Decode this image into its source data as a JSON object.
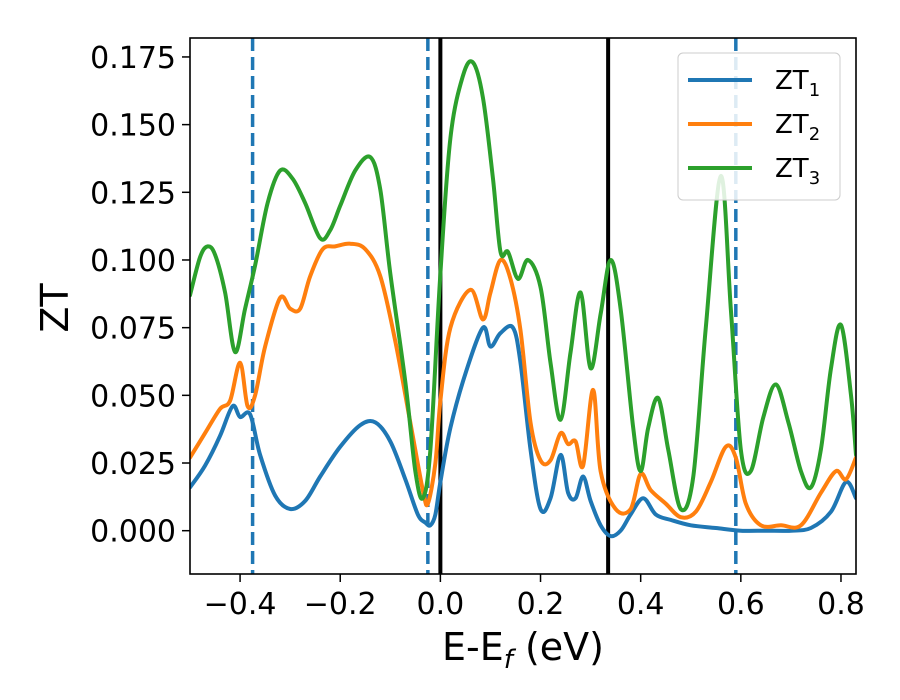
{
  "chart_data": {
    "type": "line",
    "title": "",
    "xlabel": "E-E",
    "xlabel_sub": "f",
    "xlabel_unit": " (eV)",
    "ylabel": "ZT",
    "xlim": [
      -0.5,
      0.83
    ],
    "ylim": [
      -0.016,
      0.182
    ],
    "x_ticks": [
      -0.4,
      -0.2,
      0.0,
      0.2,
      0.4,
      0.6,
      0.8
    ],
    "x_tick_labels": [
      "−0.4",
      "−0.2",
      "0.0",
      "0.2",
      "0.4",
      "0.6",
      "0.8"
    ],
    "y_ticks": [
      0.0,
      0.025,
      0.05,
      0.075,
      0.1,
      0.125,
      0.15,
      0.175
    ],
    "y_tick_labels": [
      "0.000",
      "0.025",
      "0.050",
      "0.075",
      "0.100",
      "0.125",
      "0.150",
      "0.175"
    ],
    "grid": false,
    "legend_position": "top-right",
    "vlines": [
      {
        "x": -0.375,
        "style": "dashed",
        "color": "#1f77b4"
      },
      {
        "x": -0.025,
        "style": "dashed",
        "color": "#1f77b4"
      },
      {
        "x": 0.0,
        "style": "solid",
        "color": "#000000"
      },
      {
        "x": 0.335,
        "style": "solid",
        "color": "#000000"
      },
      {
        "x": 0.59,
        "style": "dashed",
        "color": "#1f77b4"
      }
    ],
    "series": [
      {
        "name": "ZT",
        "name_sub": "1",
        "color": "#1f77b4",
        "points": [
          [
            -0.5,
            0.016
          ],
          [
            -0.47,
            0.024
          ],
          [
            -0.44,
            0.035
          ],
          [
            -0.415,
            0.046
          ],
          [
            -0.4,
            0.042
          ],
          [
            -0.38,
            0.043
          ],
          [
            -0.36,
            0.028
          ],
          [
            -0.33,
            0.013
          ],
          [
            -0.3,
            0.008
          ],
          [
            -0.27,
            0.011
          ],
          [
            -0.24,
            0.02
          ],
          [
            -0.2,
            0.031
          ],
          [
            -0.16,
            0.039
          ],
          [
            -0.13,
            0.04
          ],
          [
            -0.1,
            0.033
          ],
          [
            -0.07,
            0.019
          ],
          [
            -0.045,
            0.006
          ],
          [
            -0.03,
            0.003
          ],
          [
            -0.02,
            0.002
          ],
          [
            -0.01,
            0.006
          ],
          [
            0.0,
            0.018
          ],
          [
            0.02,
            0.038
          ],
          [
            0.05,
            0.058
          ],
          [
            0.085,
            0.075
          ],
          [
            0.1,
            0.068
          ],
          [
            0.12,
            0.073
          ],
          [
            0.145,
            0.075
          ],
          [
            0.16,
            0.062
          ],
          [
            0.18,
            0.03
          ],
          [
            0.2,
            0.008
          ],
          [
            0.22,
            0.012
          ],
          [
            0.24,
            0.028
          ],
          [
            0.255,
            0.014
          ],
          [
            0.27,
            0.012
          ],
          [
            0.285,
            0.02
          ],
          [
            0.3,
            0.011
          ],
          [
            0.32,
            0.002
          ],
          [
            0.34,
            -0.002
          ],
          [
            0.36,
            0.0
          ],
          [
            0.38,
            0.006
          ],
          [
            0.405,
            0.012
          ],
          [
            0.43,
            0.006
          ],
          [
            0.46,
            0.004
          ],
          [
            0.5,
            0.002
          ],
          [
            0.55,
            0.001
          ],
          [
            0.6,
            0.0
          ],
          [
            0.65,
            0.0
          ],
          [
            0.7,
            0.0
          ],
          [
            0.74,
            0.001
          ],
          [
            0.78,
            0.007
          ],
          [
            0.81,
            0.018
          ],
          [
            0.83,
            0.012
          ]
        ]
      },
      {
        "name": "ZT",
        "name_sub": "2",
        "color": "#ff7f0e",
        "points": [
          [
            -0.5,
            0.027
          ],
          [
            -0.47,
            0.036
          ],
          [
            -0.44,
            0.045
          ],
          [
            -0.42,
            0.048
          ],
          [
            -0.4,
            0.062
          ],
          [
            -0.385,
            0.046
          ],
          [
            -0.37,
            0.05
          ],
          [
            -0.35,
            0.068
          ],
          [
            -0.32,
            0.086
          ],
          [
            -0.3,
            0.082
          ],
          [
            -0.28,
            0.082
          ],
          [
            -0.26,
            0.094
          ],
          [
            -0.235,
            0.104
          ],
          [
            -0.21,
            0.105
          ],
          [
            -0.18,
            0.106
          ],
          [
            -0.15,
            0.104
          ],
          [
            -0.12,
            0.094
          ],
          [
            -0.09,
            0.07
          ],
          [
            -0.06,
            0.04
          ],
          [
            -0.035,
            0.015
          ],
          [
            -0.025,
            0.01
          ],
          [
            -0.01,
            0.025
          ],
          [
            0.0,
            0.048
          ],
          [
            0.02,
            0.075
          ],
          [
            0.06,
            0.089
          ],
          [
            0.085,
            0.078
          ],
          [
            0.1,
            0.088
          ],
          [
            0.12,
            0.1
          ],
          [
            0.14,
            0.093
          ],
          [
            0.16,
            0.074
          ],
          [
            0.18,
            0.04
          ],
          [
            0.2,
            0.026
          ],
          [
            0.22,
            0.026
          ],
          [
            0.24,
            0.036
          ],
          [
            0.255,
            0.032
          ],
          [
            0.27,
            0.033
          ],
          [
            0.285,
            0.024
          ],
          [
            0.305,
            0.052
          ],
          [
            0.32,
            0.022
          ],
          [
            0.35,
            0.008
          ],
          [
            0.38,
            0.008
          ],
          [
            0.4,
            0.021
          ],
          [
            0.42,
            0.015
          ],
          [
            0.45,
            0.01
          ],
          [
            0.48,
            0.005
          ],
          [
            0.51,
            0.007
          ],
          [
            0.54,
            0.018
          ],
          [
            0.57,
            0.031
          ],
          [
            0.59,
            0.027
          ],
          [
            0.61,
            0.01
          ],
          [
            0.64,
            0.002
          ],
          [
            0.68,
            0.002
          ],
          [
            0.72,
            0.002
          ],
          [
            0.76,
            0.014
          ],
          [
            0.79,
            0.022
          ],
          [
            0.81,
            0.019
          ],
          [
            0.83,
            0.027
          ]
        ]
      },
      {
        "name": "ZT",
        "name_sub": "3",
        "color": "#2ca02c",
        "points": [
          [
            -0.5,
            0.087
          ],
          [
            -0.48,
            0.101
          ],
          [
            -0.465,
            0.105
          ],
          [
            -0.45,
            0.102
          ],
          [
            -0.43,
            0.088
          ],
          [
            -0.41,
            0.066
          ],
          [
            -0.39,
            0.082
          ],
          [
            -0.37,
            0.098
          ],
          [
            -0.345,
            0.121
          ],
          [
            -0.32,
            0.133
          ],
          [
            -0.295,
            0.13
          ],
          [
            -0.27,
            0.121
          ],
          [
            -0.24,
            0.108
          ],
          [
            -0.22,
            0.111
          ],
          [
            -0.2,
            0.12
          ],
          [
            -0.17,
            0.133
          ],
          [
            -0.14,
            0.138
          ],
          [
            -0.12,
            0.126
          ],
          [
            -0.1,
            0.095
          ],
          [
            -0.07,
            0.055
          ],
          [
            -0.05,
            0.022
          ],
          [
            -0.035,
            0.012
          ],
          [
            -0.02,
            0.03
          ],
          [
            0.0,
            0.095
          ],
          [
            0.02,
            0.145
          ],
          [
            0.045,
            0.168
          ],
          [
            0.065,
            0.173
          ],
          [
            0.085,
            0.16
          ],
          [
            0.105,
            0.13
          ],
          [
            0.12,
            0.103
          ],
          [
            0.135,
            0.103
          ],
          [
            0.155,
            0.093
          ],
          [
            0.175,
            0.1
          ],
          [
            0.2,
            0.09
          ],
          [
            0.22,
            0.062
          ],
          [
            0.24,
            0.041
          ],
          [
            0.26,
            0.066
          ],
          [
            0.28,
            0.088
          ],
          [
            0.3,
            0.06
          ],
          [
            0.32,
            0.08
          ],
          [
            0.34,
            0.1
          ],
          [
            0.36,
            0.082
          ],
          [
            0.385,
            0.038
          ],
          [
            0.4,
            0.022
          ],
          [
            0.415,
            0.038
          ],
          [
            0.435,
            0.049
          ],
          [
            0.455,
            0.03
          ],
          [
            0.48,
            0.008
          ],
          [
            0.505,
            0.02
          ],
          [
            0.53,
            0.075
          ],
          [
            0.56,
            0.131
          ],
          [
            0.58,
            0.082
          ],
          [
            0.6,
            0.03
          ],
          [
            0.62,
            0.022
          ],
          [
            0.645,
            0.042
          ],
          [
            0.67,
            0.054
          ],
          [
            0.695,
            0.04
          ],
          [
            0.72,
            0.022
          ],
          [
            0.74,
            0.016
          ],
          [
            0.76,
            0.03
          ],
          [
            0.78,
            0.06
          ],
          [
            0.8,
            0.076
          ],
          [
            0.82,
            0.05
          ],
          [
            0.83,
            0.028
          ]
        ]
      }
    ]
  }
}
